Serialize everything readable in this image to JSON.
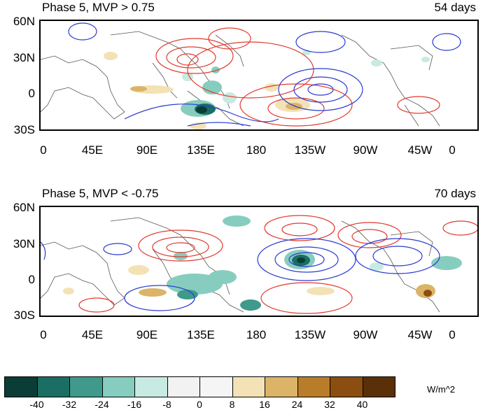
{
  "panels": [
    {
      "title": "Phase 5, MVP > 0.75",
      "days": "54 days",
      "lat_labels": [
        "60N",
        "30N",
        "0",
        "30S"
      ],
      "lon_labels": [
        "0",
        "45E",
        "90E",
        "135E",
        "180",
        "135W",
        "90W",
        "45W",
        "0"
      ]
    },
    {
      "title": "Phase 5, MVP < -0.75",
      "days": "70 days",
      "lat_labels": [
        "60N",
        "30N",
        "0",
        "30S"
      ],
      "lon_labels": [
        "0",
        "45E",
        "90E",
        "135E",
        "180",
        "135W",
        "90W",
        "45W",
        "0"
      ]
    }
  ],
  "colorbar": {
    "labels": [
      "-40",
      "-32",
      "-24",
      "-16",
      "-8",
      "0",
      "8",
      "16",
      "24",
      "32",
      "40"
    ],
    "colors": [
      "#0a3d36",
      "#1b6e63",
      "#3f9a8c",
      "#86cdbf",
      "#c7eae2",
      "#f2f2f2",
      "#f5f5f5",
      "#f3e2b5",
      "#dcb467",
      "#b97d2a",
      "#8c4e10",
      "#5a3008"
    ],
    "units": "W/m^2"
  },
  "contour_colors": {
    "positive": "#e03a2f",
    "negative": "#2b3bd1"
  }
}
